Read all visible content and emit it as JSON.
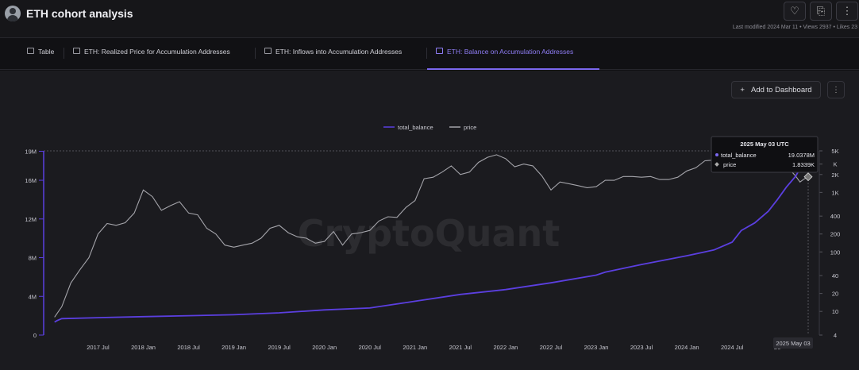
{
  "header": {
    "title": "ETH cohort analysis",
    "meta": "Last modified 2024 Mar 11 • Views 2937 • Likes 23",
    "like_icon": "heart-icon",
    "bookmark_icon": "bookmark-icon",
    "more_icon": "more-icon"
  },
  "tabs": [
    {
      "label": "Table",
      "icon": "table-icon"
    },
    {
      "label": "ETH: Realized Price for Accumulation Addresses",
      "icon": "chart-icon"
    },
    {
      "label": "ETH: Inflows into Accumulation Addresses",
      "icon": "chart-icon"
    },
    {
      "label": "ETH: Balance on Accumulation Addresses",
      "icon": "chart-icon",
      "active": true
    }
  ],
  "toolbar": {
    "add_dashboard": "Add to Dashboard",
    "plus": "+",
    "more": "⋮"
  },
  "watermark": "CryptoQuant",
  "chart_data": {
    "type": "line",
    "legend": [
      "total_balance",
      "price"
    ],
    "legend_position": "top-center",
    "colors": {
      "total_balance": "#5b3fe0",
      "price": "#a4a4aa"
    },
    "left_axis": {
      "ticks": [
        "0",
        "4M",
        "8M",
        "12M",
        "16M",
        "19M"
      ],
      "tick_values": [
        0,
        4,
        8,
        12,
        16,
        19
      ],
      "range": [
        0,
        19.04
      ]
    },
    "right_axis": {
      "scale": "log",
      "ticks": [
        "4",
        "10",
        "20",
        "40",
        "100",
        "200",
        "400",
        "1K",
        "2K",
        "K",
        "5K"
      ],
      "tick_values": [
        4,
        10,
        20,
        40,
        100,
        200,
        400,
        1000,
        2000,
        3000,
        5000
      ]
    },
    "x_ticks": [
      "2017 Jul",
      "2018 Jan",
      "2018 Jul",
      "2019 Jan",
      "2019 Jul",
      "2020 Jan",
      "2020 Jul",
      "2021 Jan",
      "2021 Jul",
      "2022 Jan",
      "2022 Jul",
      "2023 Jan",
      "2023 Jul",
      "2024 Jan",
      "2024 Jul",
      "20"
    ],
    "x_tick_values": [
      2017.5,
      2018.0,
      2018.5,
      2019.0,
      2019.5,
      2020.0,
      2020.5,
      2021.0,
      2021.5,
      2022.0,
      2022.5,
      2023.0,
      2023.5,
      2024.0,
      2024.5,
      2025.0
    ],
    "x_range": [
      2016.9,
      2025.34
    ],
    "crosshair_label": "2025 May 03",
    "tooltip": {
      "date": "2025 May 03 UTC",
      "rows": [
        {
          "name": "total_balance",
          "value": "19.0378M"
        },
        {
          "name": "price",
          "value": "1.8339K"
        }
      ]
    },
    "series": [
      {
        "name": "total_balance",
        "axis": "left",
        "unit": "M",
        "x": [
          2017.02,
          2017.05,
          2017.1,
          2017.5,
          2018.0,
          2018.5,
          2019.0,
          2019.5,
          2020.0,
          2020.5,
          2021.0,
          2021.5,
          2022.0,
          2022.5,
          2023.0,
          2023.1,
          2023.5,
          2024.0,
          2024.3,
          2024.5,
          2024.6,
          2024.75,
          2024.9,
          2025.0,
          2025.1,
          2025.2,
          2025.25,
          2025.3,
          2025.34
        ],
        "y": [
          1.35,
          1.5,
          1.7,
          1.8,
          1.9,
          2.0,
          2.1,
          2.3,
          2.6,
          2.8,
          3.5,
          4.2,
          4.7,
          5.4,
          6.2,
          6.5,
          7.3,
          8.2,
          8.8,
          9.6,
          10.8,
          11.6,
          12.8,
          14.0,
          15.3,
          16.4,
          17.2,
          18.2,
          19.04
        ]
      },
      {
        "name": "price",
        "axis": "right",
        "unit": "USD",
        "x": [
          2017.02,
          2017.1,
          2017.2,
          2017.3,
          2017.4,
          2017.5,
          2017.6,
          2017.7,
          2017.8,
          2017.9,
          2018.0,
          2018.1,
          2018.2,
          2018.3,
          2018.4,
          2018.5,
          2018.6,
          2018.7,
          2018.8,
          2018.9,
          2019.0,
          2019.1,
          2019.2,
          2019.3,
          2019.4,
          2019.5,
          2019.6,
          2019.7,
          2019.8,
          2019.9,
          2020.0,
          2020.1,
          2020.2,
          2020.3,
          2020.4,
          2020.5,
          2020.6,
          2020.7,
          2020.8,
          2020.9,
          2021.0,
          2021.1,
          2021.2,
          2021.3,
          2021.4,
          2021.5,
          2021.6,
          2021.7,
          2021.8,
          2021.9,
          2022.0,
          2022.1,
          2022.2,
          2022.3,
          2022.4,
          2022.5,
          2022.6,
          2022.7,
          2022.8,
          2022.9,
          2023.0,
          2023.1,
          2023.2,
          2023.3,
          2023.4,
          2023.5,
          2023.6,
          2023.7,
          2023.8,
          2023.9,
          2024.0,
          2024.1,
          2024.2,
          2024.3,
          2024.4,
          2024.5,
          2024.6,
          2024.7,
          2024.8,
          2024.9,
          2025.0,
          2025.1,
          2025.2,
          2025.25,
          2025.3,
          2025.34
        ],
        "y": [
          8,
          12,
          30,
          50,
          80,
          200,
          300,
          280,
          310,
          450,
          1100,
          850,
          500,
          600,
          700,
          450,
          420,
          250,
          200,
          130,
          120,
          130,
          140,
          170,
          250,
          280,
          210,
          180,
          170,
          140,
          150,
          220,
          130,
          200,
          210,
          230,
          330,
          390,
          380,
          560,
          730,
          1700,
          1800,
          2200,
          2800,
          2000,
          2200,
          3200,
          3900,
          4300,
          3700,
          2700,
          3000,
          2800,
          1900,
          1100,
          1500,
          1400,
          1300,
          1200,
          1250,
          1600,
          1600,
          1850,
          1850,
          1800,
          1850,
          1650,
          1650,
          1800,
          2300,
          2600,
          3400,
          3500,
          3000,
          3500,
          2500,
          2600,
          2400,
          2700,
          3300,
          2800,
          1900,
          1500,
          1700,
          1834
        ]
      }
    ]
  }
}
